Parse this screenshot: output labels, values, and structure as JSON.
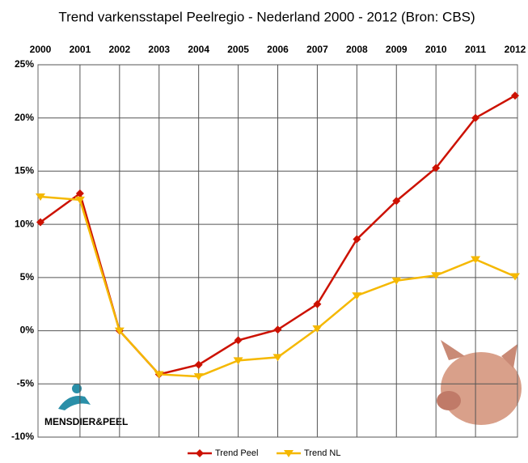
{
  "chart_data": {
    "type": "line",
    "title": "Trend varkensstapel Peelregio - Nederland 2000 - 2012 (Bron: CBS)",
    "categories": [
      "2000",
      "2001",
      "2002",
      "2003",
      "2004",
      "2005",
      "2006",
      "2007",
      "2008",
      "2009",
      "2010",
      "2011",
      "2012"
    ],
    "series": [
      {
        "name": "Trend Peel",
        "color": "#cc1100",
        "marker": "diamond",
        "values": [
          10.2,
          12.9,
          0,
          -4.1,
          -3.2,
          -0.9,
          0.1,
          2.5,
          8.6,
          12.2,
          15.3,
          20,
          22.1
        ]
      },
      {
        "name": "Trend NL",
        "color": "#f5b800",
        "marker": "triangle-down",
        "values": [
          12.6,
          12.3,
          0,
          -4.1,
          -4.3,
          -2.8,
          -2.5,
          0.2,
          3.3,
          4.7,
          5.2,
          6.7,
          5.1
        ]
      }
    ],
    "ylim": [
      -10,
      25
    ],
    "yticks": [
      {
        "value": -10,
        "label": "-10%"
      },
      {
        "value": -5,
        "label": "-5%"
      },
      {
        "value": 0,
        "label": "0%"
      },
      {
        "value": 5,
        "label": "5%"
      },
      {
        "value": 10,
        "label": "10%"
      },
      {
        "value": 15,
        "label": "15%"
      },
      {
        "value": 20,
        "label": "20%"
      },
      {
        "value": 25,
        "label": "25%"
      }
    ],
    "grid": true,
    "legend": "bottom",
    "logo": "MENSDIER&PEEL"
  }
}
